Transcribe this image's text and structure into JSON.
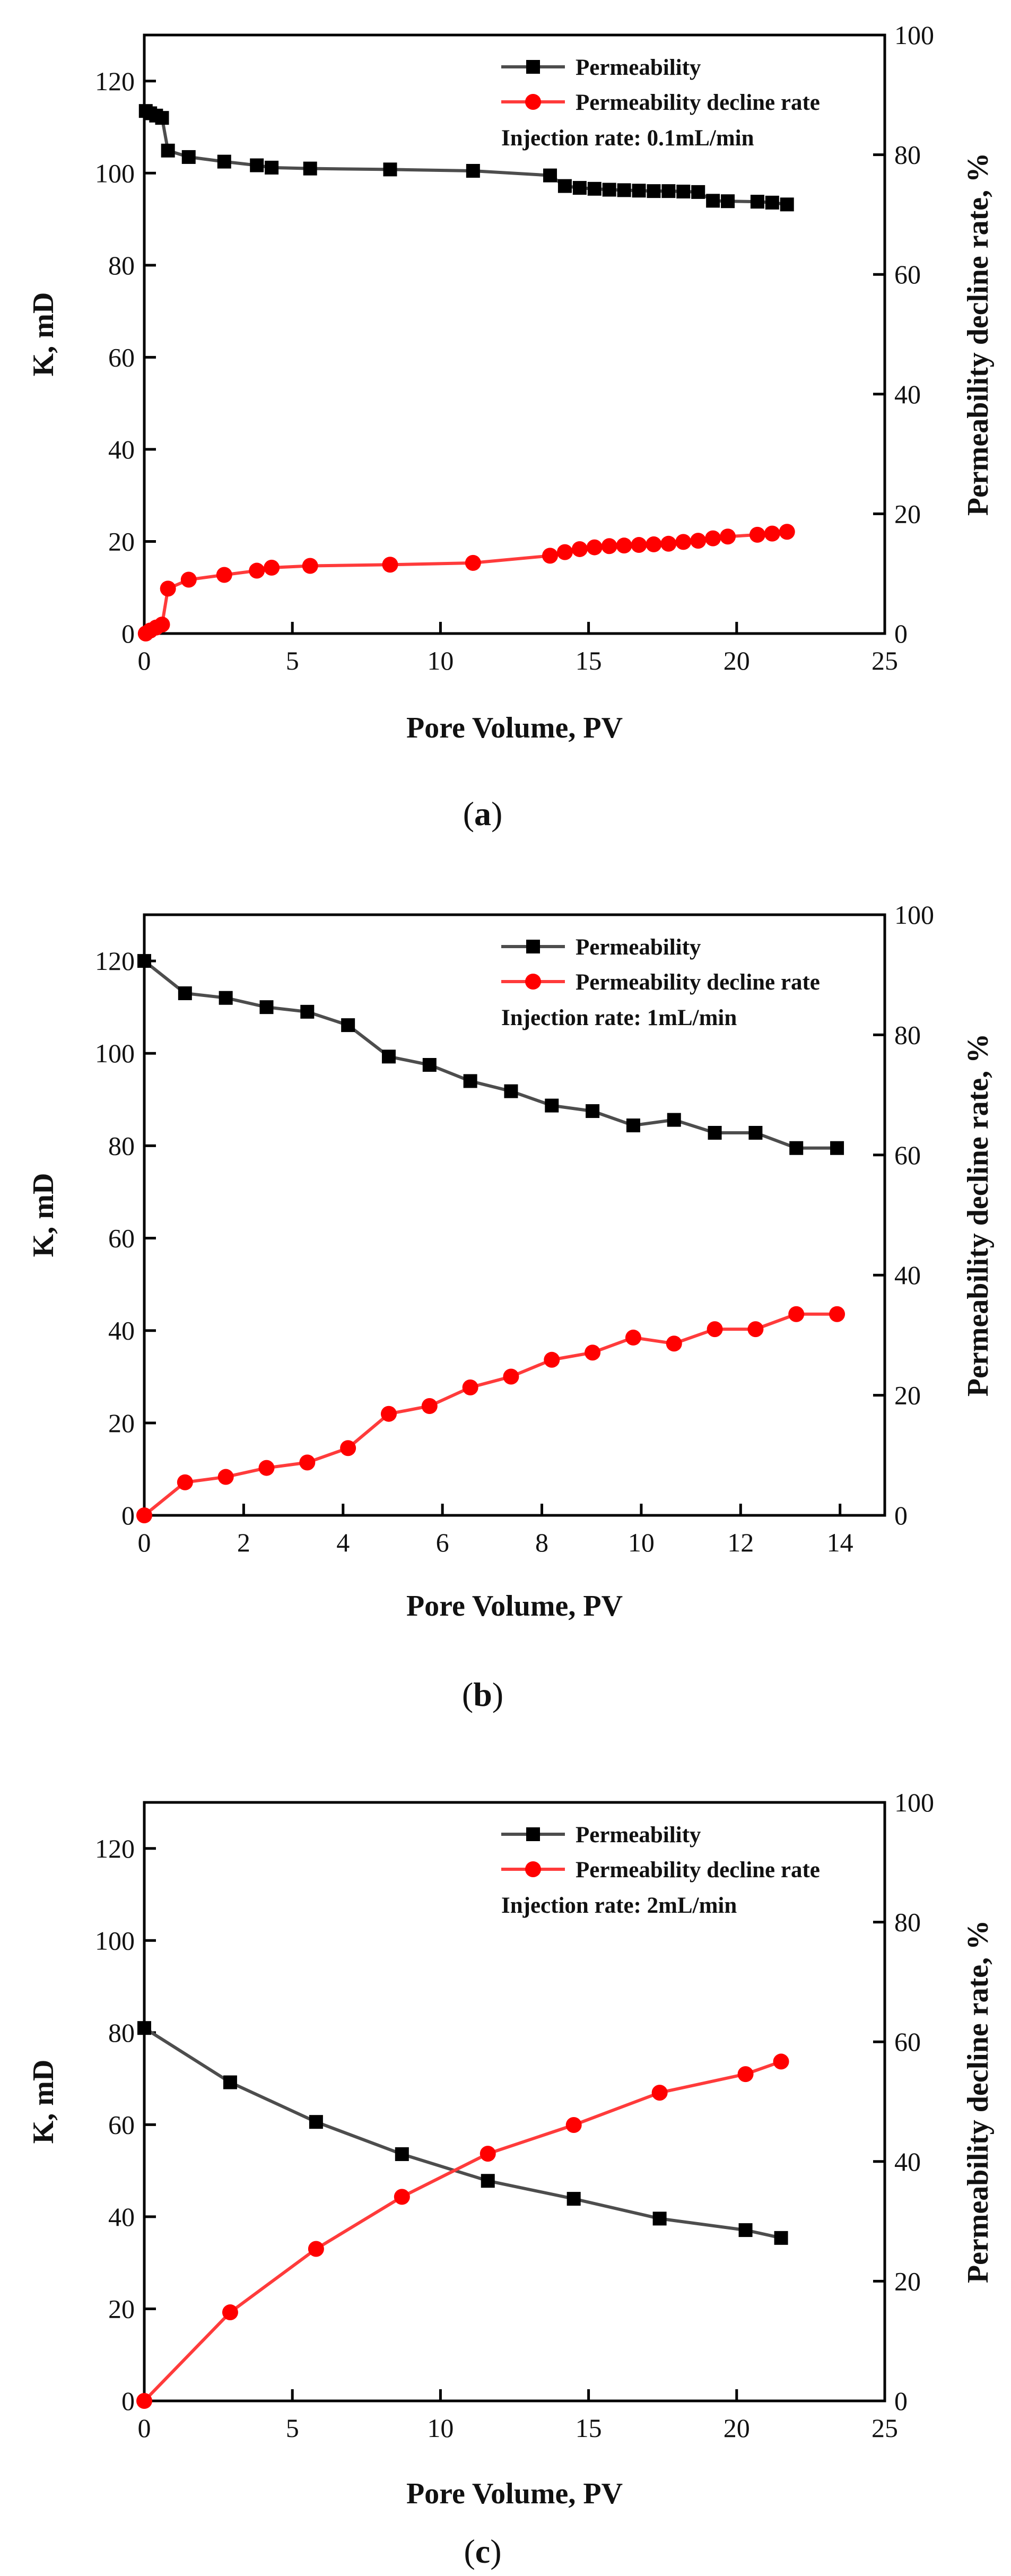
{
  "chart_data": [
    {
      "type": "line",
      "panel_label": "a",
      "xlabel": "Pore Volume, PV",
      "ylabel": "K, mD",
      "y2label": "Permeability decline rate, %",
      "xlim": [
        0,
        25
      ],
      "ylim": [
        0,
        130
      ],
      "y2lim": [
        0,
        100
      ],
      "xticks": [
        0,
        5,
        10,
        15,
        20,
        25
      ],
      "yticks": [
        0,
        20,
        40,
        60,
        80,
        100,
        120
      ],
      "y2ticks": [
        0,
        20,
        40,
        60,
        80,
        100
      ],
      "annotation": "Injection rate: 0.1mL/min",
      "legend_position": "top-right",
      "series": [
        {
          "name": "Permeability",
          "axis": "left",
          "color": "#000000",
          "line_color": "#4d4d4d",
          "marker": "square",
          "x": [
            0.05,
            0.2,
            0.4,
            0.6,
            0.8,
            1.5,
            2.7,
            3.8,
            4.3,
            5.6,
            8.3,
            11.1,
            13.7,
            14.2,
            14.7,
            15.2,
            15.7,
            16.2,
            16.7,
            17.2,
            17.7,
            18.2,
            18.7,
            19.2,
            19.7,
            20.7,
            21.2,
            21.7
          ],
          "values": [
            113.5,
            113.0,
            112.5,
            112.0,
            104.9,
            103.5,
            102.5,
            101.7,
            101.2,
            101.0,
            100.8,
            100.5,
            99.5,
            97.2,
            96.8,
            96.6,
            96.4,
            96.3,
            96.2,
            96.1,
            96.1,
            96.0,
            95.9,
            94.0,
            93.9,
            93.8,
            93.6,
            93.2
          ]
        },
        {
          "name": "Permeability decline rate",
          "axis": "right",
          "color": "#ff0000",
          "line_color": "#ff3b3b",
          "marker": "circle",
          "x": [
            0.05,
            0.2,
            0.4,
            0.6,
            0.8,
            1.5,
            2.7,
            3.8,
            4.3,
            5.6,
            8.3,
            11.1,
            13.7,
            14.2,
            14.7,
            15.2,
            15.7,
            16.2,
            16.7,
            17.2,
            17.7,
            18.2,
            18.7,
            19.2,
            19.7,
            20.7,
            21.2,
            21.7
          ],
          "values": [
            0,
            0.5,
            1.0,
            1.5,
            7.5,
            9.0,
            9.8,
            10.5,
            11.0,
            11.3,
            11.5,
            11.8,
            13.0,
            13.6,
            14.1,
            14.4,
            14.6,
            14.7,
            14.8,
            14.9,
            15.0,
            15.3,
            15.5,
            15.9,
            16.2,
            16.5,
            16.7,
            17.0
          ]
        }
      ]
    },
    {
      "type": "line",
      "panel_label": "b",
      "xlabel": "Pore Volume, PV",
      "ylabel": "K, mD",
      "y2label": "Permeability decline rate, %",
      "xlim": [
        0,
        14.9
      ],
      "ylim": [
        0,
        130
      ],
      "y2lim": [
        0,
        100
      ],
      "xticks": [
        0,
        2,
        4,
        6,
        8,
        10,
        12,
        14
      ],
      "yticks": [
        0,
        20,
        40,
        60,
        80,
        100,
        120
      ],
      "y2ticks": [
        0,
        20,
        40,
        60,
        80,
        100
      ],
      "annotation": "Injection rate: 1mL/min",
      "legend_position": "top-right",
      "series": [
        {
          "name": "Permeability",
          "axis": "left",
          "color": "#000000",
          "line_color": "#4d4d4d",
          "marker": "square",
          "x": [
            0,
            0.82,
            1.64,
            2.46,
            3.28,
            4.1,
            4.92,
            5.74,
            6.56,
            7.38,
            8.2,
            9.02,
            9.84,
            10.66,
            11.48,
            12.3,
            13.12,
            13.94
          ],
          "values": [
            120,
            113.0,
            112.0,
            110.0,
            109.0,
            106.1,
            99.3,
            97.5,
            94.0,
            91.8,
            88.7,
            87.5,
            84.4,
            85.6,
            82.8,
            82.8,
            79.5,
            79.5
          ]
        },
        {
          "name": "Permeability decline rate",
          "axis": "right",
          "color": "#ff0000",
          "line_color": "#ff3b3b",
          "marker": "circle",
          "x": [
            0,
            0.82,
            1.64,
            2.46,
            3.28,
            4.1,
            4.92,
            5.74,
            6.56,
            7.38,
            8.2,
            9.02,
            9.84,
            10.66,
            11.48,
            12.3,
            13.12,
            13.94
          ],
          "values": [
            0,
            5.5,
            6.4,
            7.9,
            8.8,
            11.2,
            16.9,
            18.2,
            21.3,
            23.1,
            25.9,
            27.1,
            29.6,
            28.6,
            31.0,
            31.0,
            33.5,
            33.5
          ]
        }
      ]
    },
    {
      "type": "line",
      "panel_label": "c",
      "xlabel": "Pore Volume, PV",
      "ylabel": "K, mD",
      "y2label": "Permeability decline rate, %",
      "xlim": [
        0,
        25
      ],
      "ylim": [
        0,
        130
      ],
      "y2lim": [
        0,
        100
      ],
      "xticks": [
        0,
        5,
        10,
        15,
        20,
        25
      ],
      "yticks": [
        0,
        20,
        40,
        60,
        80,
        100,
        120
      ],
      "y2ticks": [
        0,
        20,
        40,
        60,
        80,
        100
      ],
      "annotation": "Injection rate: 2mL/min",
      "legend_position": "top-right",
      "series": [
        {
          "name": "Permeability",
          "axis": "left",
          "color": "#000000",
          "line_color": "#4d4d4d",
          "marker": "square",
          "x": [
            0,
            2.9,
            5.8,
            8.7,
            11.6,
            14.5,
            17.4,
            20.3,
            21.5
          ],
          "values": [
            81.0,
            69.2,
            60.6,
            53.6,
            47.8,
            43.9,
            39.6,
            37.1,
            35.4
          ]
        },
        {
          "name": "Permeability decline rate",
          "axis": "right",
          "color": "#ff0000",
          "line_color": "#ff3b3b",
          "marker": "circle",
          "x": [
            0,
            2.9,
            5.8,
            8.7,
            11.6,
            14.5,
            17.4,
            20.3,
            21.5
          ],
          "values": [
            0,
            14.8,
            25.4,
            34.1,
            41.3,
            46.1,
            51.5,
            54.6,
            56.7
          ]
        }
      ]
    }
  ]
}
